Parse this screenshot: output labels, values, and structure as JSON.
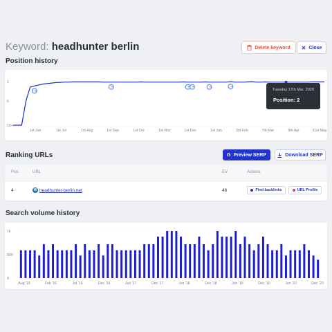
{
  "header": {
    "keyword_prefix": "Keyword:",
    "keyword_value": "headhunter berlin",
    "delete_label": "Delete keyword",
    "close_label": "Close"
  },
  "position_history": {
    "title": "Position history",
    "tooltip_date": "Tuesday 17th Mar, 2020",
    "tooltip_position": "Position: 2"
  },
  "ranking_urls": {
    "title": "Ranking URLs",
    "preview_label": "Preview SERP",
    "download_label": "Download SERP",
    "columns": [
      "Pos.",
      "URL",
      "EV",
      "Actions"
    ],
    "rows": [
      {
        "pos": "4",
        "url": "headhunter-berlin.net",
        "ev": "46",
        "find_backlinks": "Find backlinks",
        "url_profile": "URL Profile"
      }
    ]
  },
  "search_volume": {
    "title": "Search volume history"
  },
  "colors": {
    "accent": "#2433cc",
    "danger": "#e0533d",
    "tooltip_bg": "#2b2f36"
  },
  "chart_data": [
    {
      "type": "line",
      "title": "Position history",
      "x_ticks": [
        "1st Jun",
        "1st Jul",
        "1st Aug",
        "1st Sep",
        "1st Oct",
        "1st Nov",
        "1st Dec",
        "1st Jan",
        "3rd Feb",
        "7th Mar",
        "9th Apr",
        "31st May"
      ],
      "y_ticks": [
        "1",
        "5",
        "10+"
      ],
      "ylim": [
        1,
        10
      ],
      "y_inverted": true,
      "series": [
        {
          "values": [
            10,
            10,
            10,
            5,
            2.1,
            1.9,
            1.7,
            1.5,
            1.4,
            1.3,
            1.2,
            1.15,
            1.1,
            1.1,
            1.05,
            1.05,
            1.05,
            1.05,
            1.05,
            1.05,
            1.05,
            1.1,
            1.1,
            1.1,
            1.1,
            1.1,
            1.1,
            1.1,
            1.1,
            1.1,
            1.05,
            1.1,
            1.1,
            1.1,
            1.1,
            1.1,
            1.1,
            1.1,
            1.1,
            1.1,
            1.05,
            1.1,
            1.1,
            1.1,
            1.1,
            1.05,
            1.1,
            1.1,
            1.1,
            1.1,
            1.1,
            1.0,
            1.1,
            1.1,
            1.1,
            1.05,
            1.0,
            1.1,
            1.1,
            1.05,
            1.1,
            1.1,
            1.1,
            1.1,
            1.1,
            1.1,
            1.1,
            1.1,
            1.1,
            1.1,
            1.05,
            1.05,
            1.05,
            1.05
          ]
        }
      ],
      "annotations": [
        "google-update-icon"
      ],
      "grid": false
    },
    {
      "type": "bar",
      "title": "Search volume history",
      "x_ticks": [
        "Aug '15",
        "Feb '16",
        "Jul '16",
        "Dec '16",
        "Jun '17",
        "Dec '17",
        "Jun '18",
        "Dec '18",
        "Jun '19",
        "Dec '19",
        "Jun '20",
        "Dec '20"
      ],
      "y_ticks": [
        "1k",
        "500",
        "0"
      ],
      "ylim": [
        0,
        1000
      ],
      "values": [
        590,
        590,
        590,
        590,
        480,
        720,
        590,
        720,
        590,
        590,
        590,
        590,
        720,
        480,
        720,
        590,
        590,
        720,
        480,
        720,
        720,
        590,
        590,
        590,
        590,
        590,
        590,
        720,
        720,
        720,
        880,
        880,
        1000,
        1000,
        1000,
        880,
        720,
        720,
        720,
        880,
        720,
        590,
        720,
        1000,
        880,
        880,
        880,
        1000,
        720,
        880,
        720,
        590,
        720,
        880,
        720,
        590,
        590,
        720,
        480,
        590,
        590,
        590,
        720,
        590,
        480,
        390
      ]
    }
  ]
}
